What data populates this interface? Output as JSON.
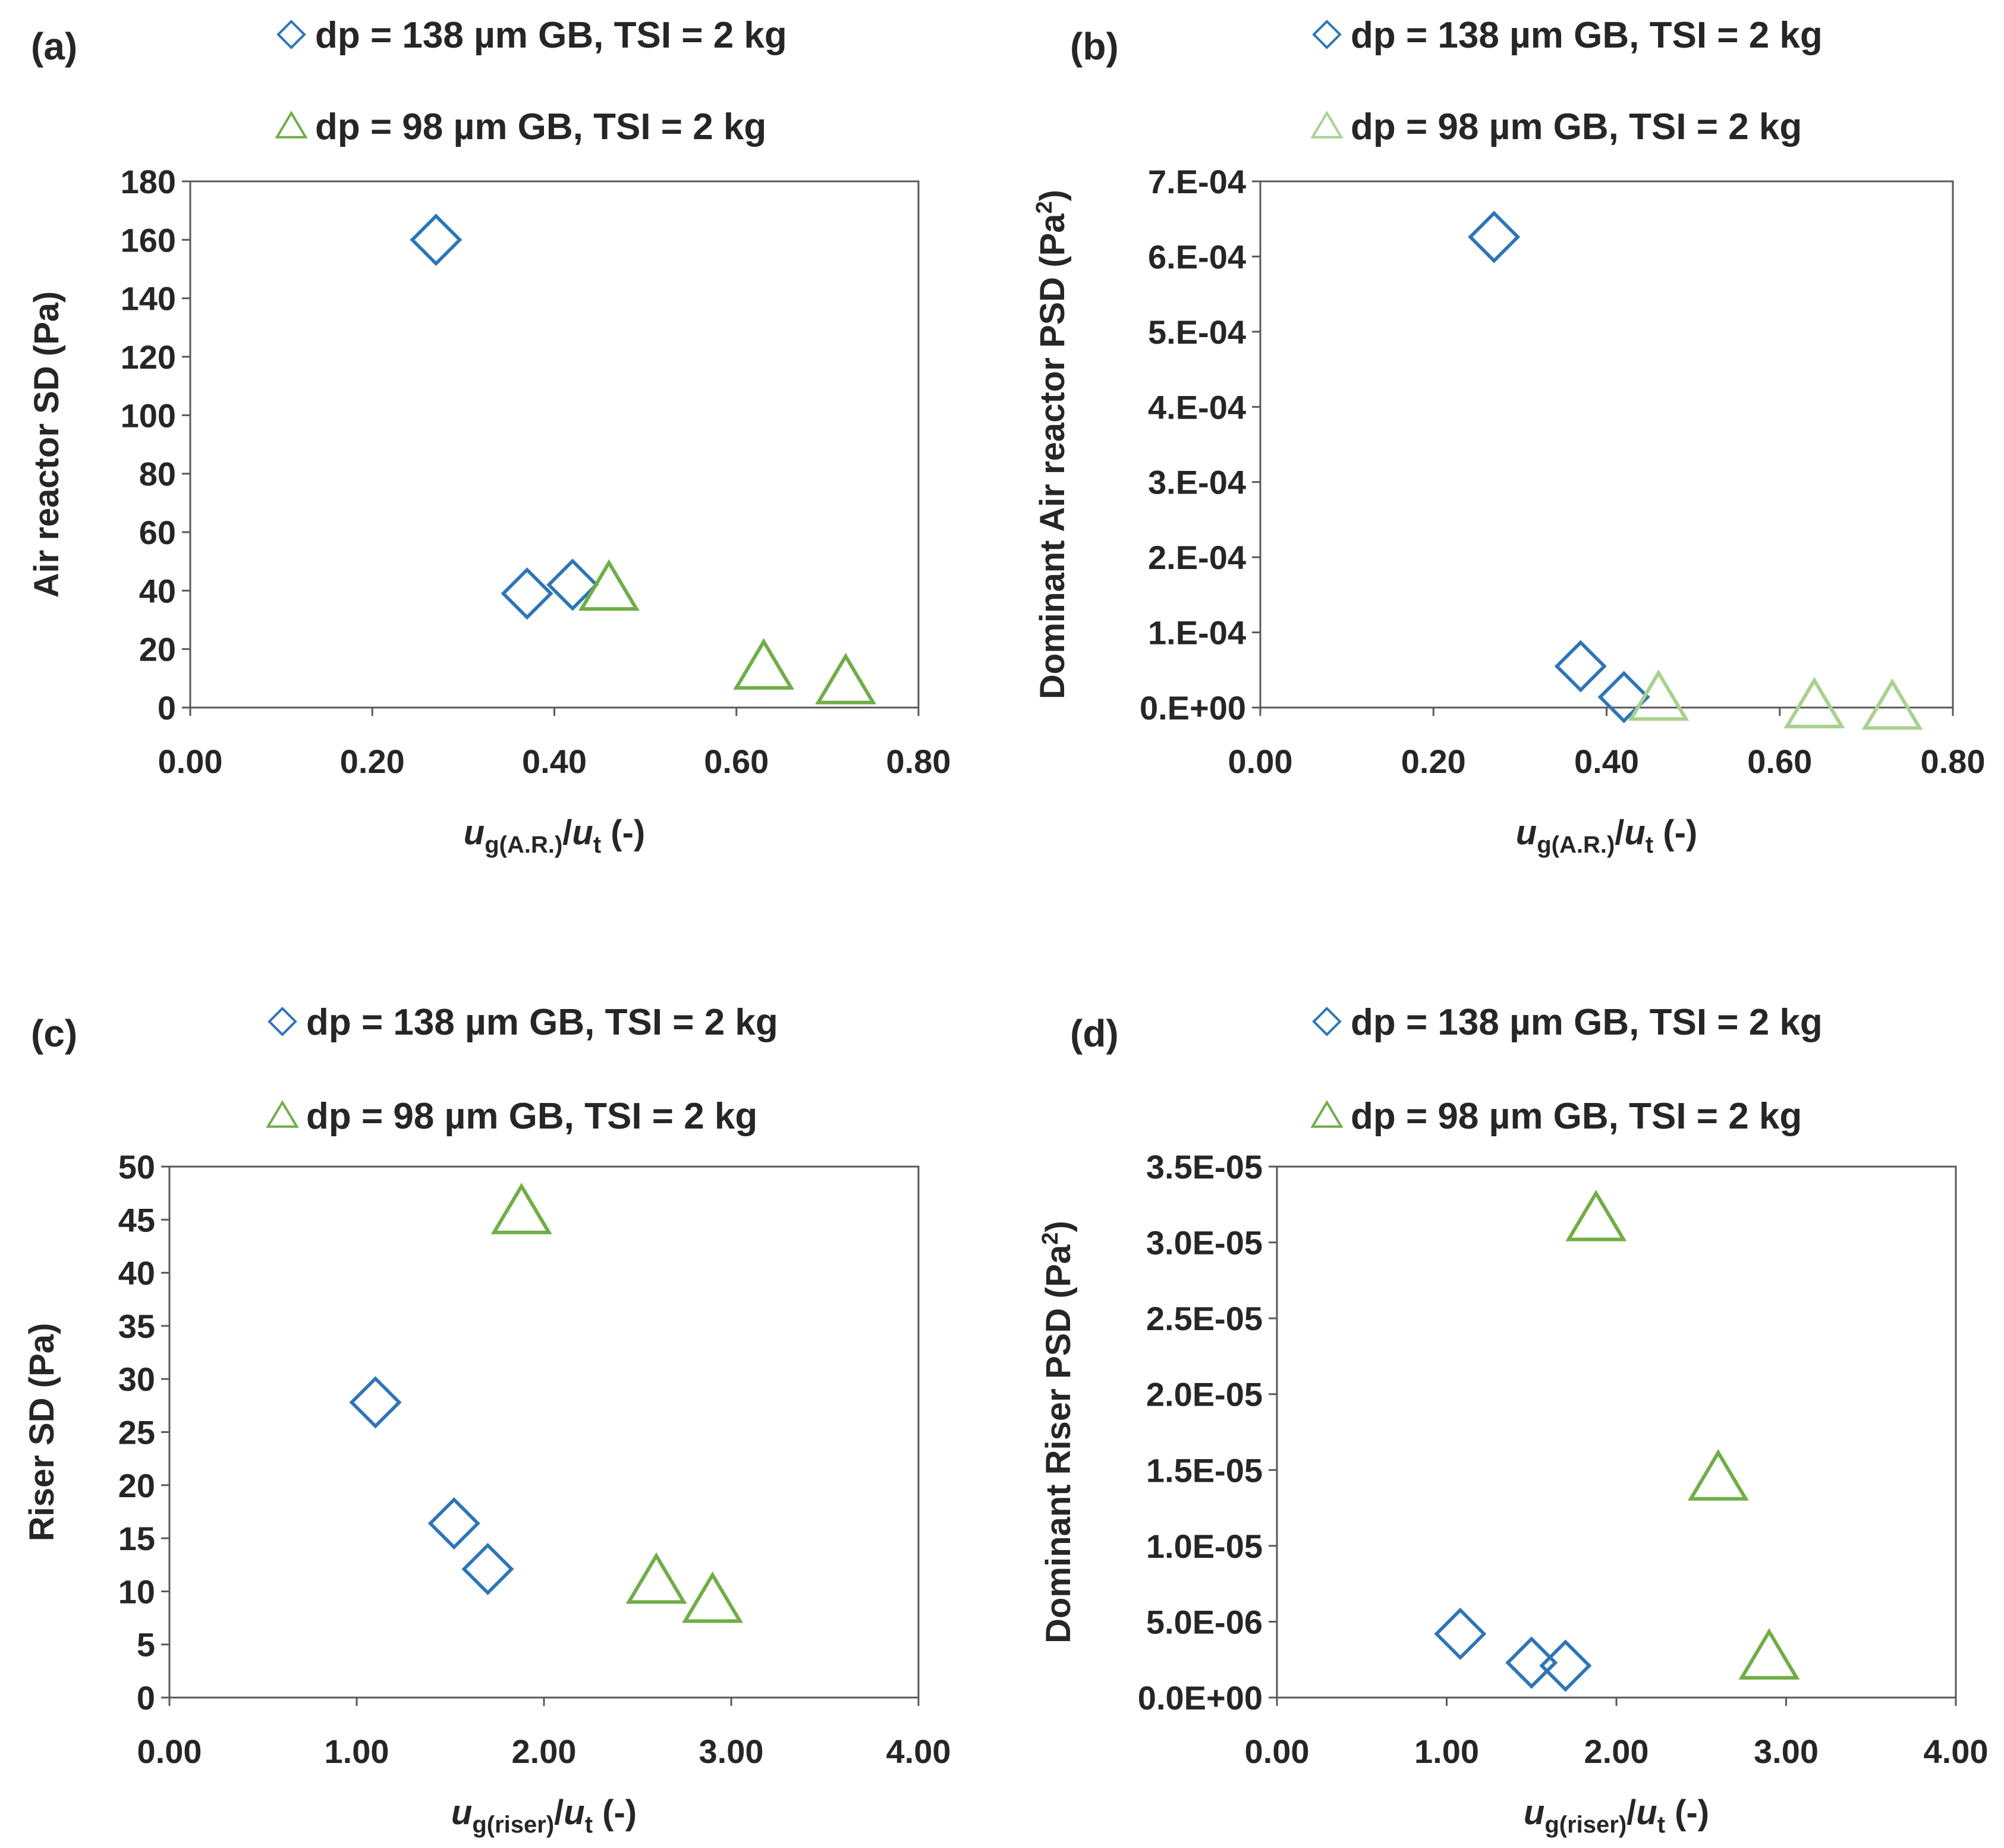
{
  "colors": {
    "diamond": "#2E75B6",
    "triangle": "#70AD47",
    "triangle_light": "#A9D18E",
    "axis": "#595959",
    "text": "#262626"
  },
  "chart_data": [
    {
      "panel": "(a)",
      "type": "scatter",
      "ylabel": "Air reactor SD (Pa)",
      "ylabel_sup": "",
      "xlabel_main": "u",
      "xlabel_sub": "g(A.R.)",
      "xlabel_mid": "/",
      "xlabel_main2": "u",
      "xlabel_sub2": "t",
      "xlabel_end": " (-)",
      "xlim": [
        0,
        0.8
      ],
      "ylim": [
        0,
        180
      ],
      "xticks": [
        0,
        0.2,
        0.4,
        0.6,
        0.8
      ],
      "yticks": [
        0,
        20,
        40,
        60,
        80,
        100,
        120,
        140,
        160,
        180
      ],
      "xtick_labels": [
        "0.00",
        "0.20",
        "0.40",
        "0.60",
        "0.80"
      ],
      "ytick_labels": [
        "0",
        "20",
        "40",
        "60",
        "80",
        "100",
        "120",
        "140",
        "160",
        "180"
      ],
      "legend": [
        "dp = 138 µm GB, TSI = 2 kg",
        "dp = 98 µm GB, TSI = 2 kg"
      ],
      "series": [
        {
          "name": "dp = 138 µm GB, TSI = 2 kg",
          "marker": "diamond",
          "x": [
            0.27,
            0.37,
            0.42
          ],
          "y": [
            160,
            39,
            42
          ]
        },
        {
          "name": "dp = 98 µm GB, TSI = 2 kg",
          "marker": "triangle",
          "x": [
            0.46,
            0.63,
            0.72
          ],
          "y": [
            41,
            14,
            9
          ]
        }
      ]
    },
    {
      "panel": "(b)",
      "type": "scatter",
      "ylabel": "Dominant Air reactor PSD (Pa",
      "ylabel_sup": "2",
      "xlabel_main": "u",
      "xlabel_sub": "g(A.R.)",
      "xlabel_mid": "/",
      "xlabel_main2": "u",
      "xlabel_sub2": "t",
      "xlabel_end": " (-)",
      "xlim": [
        0,
        0.8
      ],
      "ylim": [
        0,
        0.0007
      ],
      "xticks": [
        0,
        0.2,
        0.4,
        0.6,
        0.8
      ],
      "yticks": [
        0,
        0.0001,
        0.0002,
        0.0003,
        0.0004,
        0.0005,
        0.0006,
        0.0007
      ],
      "xtick_labels": [
        "0.00",
        "0.20",
        "0.40",
        "0.60",
        "0.80"
      ],
      "ytick_labels": [
        "0.E+00",
        "1.E-04",
        "2.E-04",
        "3.E-04",
        "4.E-04",
        "5.E-04",
        "6.E-04",
        "7.E-04"
      ],
      "legend": [
        "dp = 138 µm GB, TSI = 2 kg",
        "dp = 98 µm GB, TSI = 2 kg"
      ],
      "series": [
        {
          "name": "dp = 138 µm GB, TSI = 2 kg",
          "marker": "diamond",
          "x": [
            0.27,
            0.37,
            0.42
          ],
          "y": [
            0.000626,
            5.5e-05,
            1.4e-05
          ]
        },
        {
          "name": "dp = 98 µm GB, TSI = 2 kg",
          "marker": "triangle-light",
          "x": [
            0.46,
            0.64,
            0.73
          ],
          "y": [
            1.3e-05,
            3e-06,
            1e-06
          ]
        }
      ]
    },
    {
      "panel": "(c)",
      "type": "scatter",
      "ylabel": "Riser SD (Pa)",
      "ylabel_sup": "",
      "xlabel_main": "u",
      "xlabel_sub": "g(riser)",
      "xlabel_mid": "/",
      "xlabel_main2": "u",
      "xlabel_sub2": "t",
      "xlabel_end": " (-)",
      "xlim": [
        0,
        4
      ],
      "ylim": [
        0,
        50
      ],
      "xticks": [
        0,
        1,
        2,
        3,
        4
      ],
      "yticks": [
        0,
        5,
        10,
        15,
        20,
        25,
        30,
        35,
        40,
        45,
        50
      ],
      "xtick_labels": [
        "0.00",
        "1.00",
        "2.00",
        "3.00",
        "4.00"
      ],
      "ytick_labels": [
        "0",
        "5",
        "10",
        "15",
        "20",
        "25",
        "30",
        "35",
        "40",
        "45",
        "50"
      ],
      "legend": [
        "dp = 138 µm GB, TSI = 2 kg",
        "dp = 98 µm GB, TSI = 2 kg"
      ],
      "series": [
        {
          "name": "dp = 138 µm GB, TSI = 2 kg",
          "marker": "diamond",
          "x": [
            1.1,
            1.52,
            1.7
          ],
          "y": [
            27.8,
            16.4,
            12.1
          ]
        },
        {
          "name": "dp = 98 µm GB, TSI = 2 kg",
          "marker": "triangle",
          "x": [
            1.88,
            2.6,
            2.9
          ],
          "y": [
            45.8,
            11.0,
            9.2
          ]
        }
      ]
    },
    {
      "panel": "(d)",
      "type": "scatter",
      "ylabel": "Dominant Riser PSD (Pa",
      "ylabel_sup": "2",
      "xlabel_main": "u",
      "xlabel_sub": "g(riser)",
      "xlabel_mid": "/",
      "xlabel_main2": "u",
      "xlabel_sub2": "t",
      "xlabel_end": " (-)",
      "xlim": [
        0,
        4
      ],
      "ylim": [
        0,
        3.5e-05
      ],
      "xticks": [
        0,
        1,
        2,
        3,
        4
      ],
      "yticks": [
        0,
        5e-06,
        1e-05,
        1.5e-05,
        2e-05,
        2.5e-05,
        3e-05,
        3.5e-05
      ],
      "xtick_labels": [
        "0.00",
        "1.00",
        "2.00",
        "3.00",
        "4.00"
      ],
      "ytick_labels": [
        "0.0E+00",
        "5.0E-06",
        "1.0E-05",
        "1.5E-05",
        "2.0E-05",
        "2.5E-05",
        "3.0E-05",
        "3.5E-05"
      ],
      "legend": [
        "dp = 138 µm GB, TSI = 2 kg",
        "dp = 98 µm GB, TSI = 2 kg"
      ],
      "series": [
        {
          "name": "dp = 138 µm GB, TSI = 2 kg",
          "marker": "diamond",
          "x": [
            1.08,
            1.5,
            1.7
          ],
          "y": [
            4.2e-06,
            2.3e-06,
            2.1e-06
          ]
        },
        {
          "name": "dp = 98 µm GB, TSI = 2 kg",
          "marker": "triangle",
          "x": [
            1.88,
            2.6,
            2.9
          ],
          "y": [
            3.16e-05,
            1.45e-05,
            2.7e-06
          ]
        }
      ]
    }
  ]
}
